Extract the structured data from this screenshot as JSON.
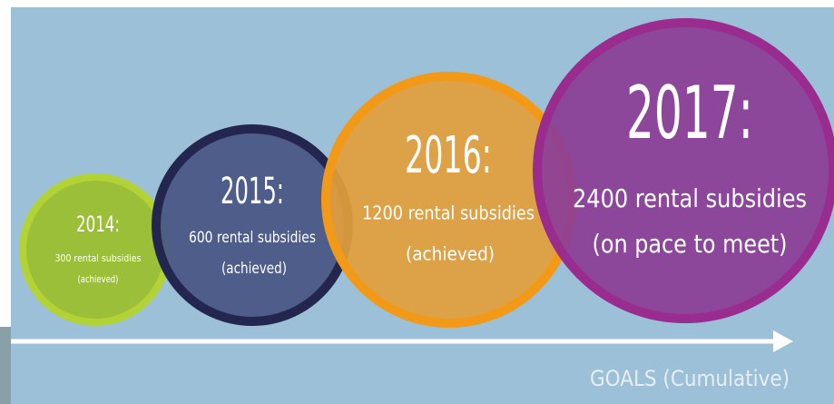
{
  "goals": [
    {
      "year": "2014:",
      "subsidies": "300 rental subsidies",
      "status": "(achieved)"
    },
    {
      "year": "2015:",
      "subsidies": "600 rental subsidies",
      "status": "(achieved)"
    },
    {
      "year": "2016:",
      "subsidies": "1200 rental subsidies",
      "status": "(achieved)"
    },
    {
      "year": "2017:",
      "subsidies": "2400 rental subsidies",
      "status": "(on pace to meet)"
    }
  ],
  "axis_label": "GOALS (Cumulative)"
}
